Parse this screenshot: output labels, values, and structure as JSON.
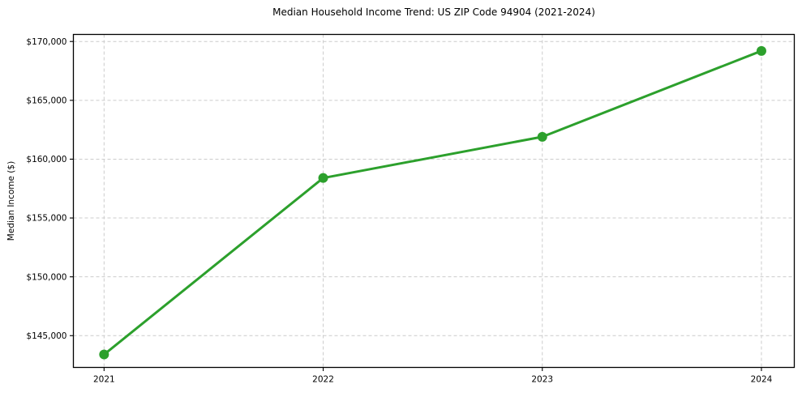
{
  "chart_data": {
    "type": "line",
    "title": "Median Household Income Trend: US ZIP Code 94904 (2021-2024)",
    "xlabel": "",
    "ylabel": "Median Income ($)",
    "x": [
      2021,
      2022,
      2023,
      2024
    ],
    "series": [
      {
        "name": "Median Household Income",
        "values": [
          143400,
          158400,
          161900,
          169200
        ]
      }
    ],
    "xticks": {
      "values": [
        2021,
        2022,
        2023,
        2024
      ],
      "labels": [
        "2021",
        "2022",
        "2023",
        "2024"
      ]
    },
    "yticks": {
      "values": [
        145000,
        150000,
        155000,
        160000,
        165000,
        170000
      ],
      "labels": [
        "$145,000",
        "$150,000",
        "$155,000",
        "$160,000",
        "$165,000",
        "$170,000"
      ]
    },
    "xlim": [
      2020.86,
      2024.15
    ],
    "ylim": [
      142300,
      170600
    ],
    "grid": true,
    "grid_style": "dashed",
    "legend_position": "none",
    "colors": {
      "line": "#2ca02c",
      "marker": "#2ca02c",
      "grid": "#cccccc",
      "axis": "#000000",
      "text": "#000000",
      "background": "#ffffff"
    },
    "line_width": 3,
    "marker_radius": 6
  }
}
